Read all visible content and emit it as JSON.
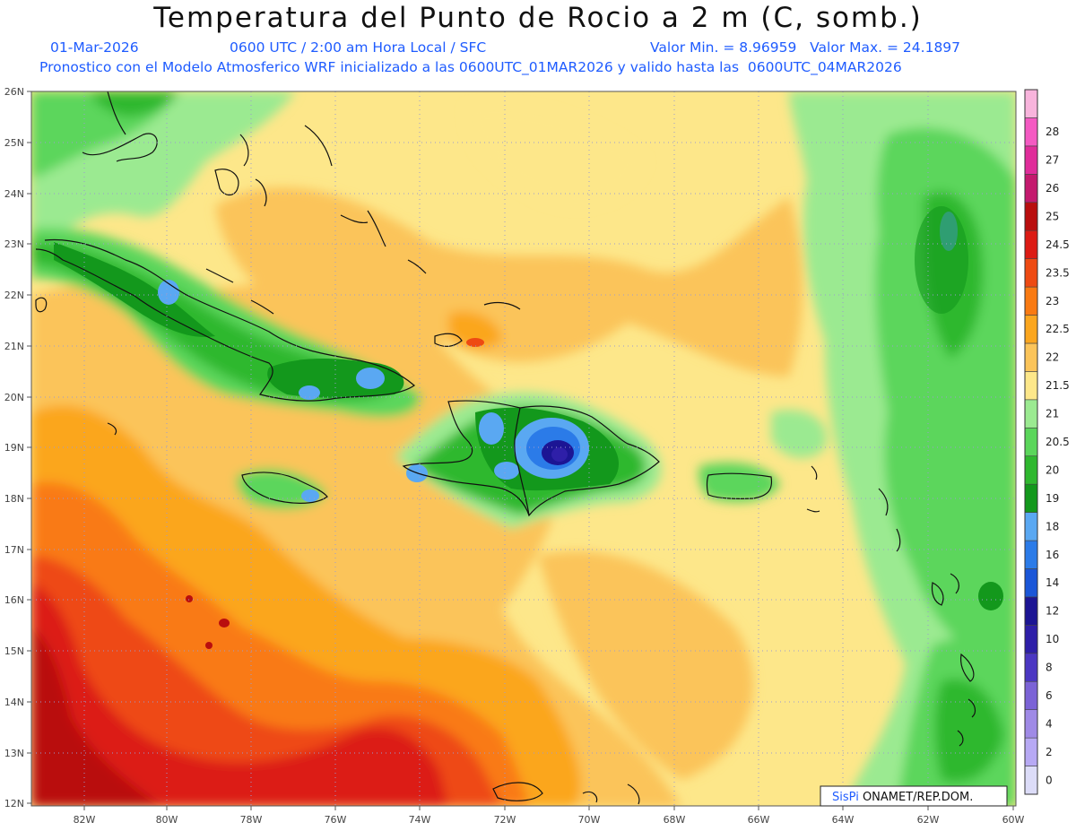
{
  "title": "Temperatura del Punto de Rocio a 2 m (C, somb.)",
  "header": {
    "date": "01-Mar-2026",
    "time": "0600 UTC / 2:00 am Hora Local / SFC",
    "minmax": "Valor Min. = 8.96959   Valor Max. = 24.1897",
    "forecast": "Pronostico con el Modelo Atmosferico WRF inicializado a las 0600UTC_01MAR2026 y valido hasta las  0600UTC_04MAR2026"
  },
  "axes": {
    "lat_labels": [
      "26N",
      "25N",
      "24N",
      "23N",
      "22N",
      "21N",
      "20N",
      "19N",
      "18N",
      "17N",
      "16N",
      "15N",
      "14N",
      "13N",
      "12N"
    ],
    "lon_labels": [
      "82W",
      "80W",
      "78W",
      "76W",
      "74W",
      "72W",
      "70W",
      "68W",
      "66W",
      "64W",
      "62W",
      "60W"
    ]
  },
  "legend": {
    "levels": [
      {
        "label": "0",
        "color": "#dcdcf8"
      },
      {
        "label": "2",
        "color": "#b7a9f4"
      },
      {
        "label": "4",
        "color": "#9f8ae6"
      },
      {
        "label": "6",
        "color": "#7b63d6"
      },
      {
        "label": "8",
        "color": "#4b37c2"
      },
      {
        "label": "10",
        "color": "#2e1fa8"
      },
      {
        "label": "12",
        "color": "#1c1594"
      },
      {
        "label": "14",
        "color": "#1a56d8"
      },
      {
        "label": "16",
        "color": "#2b7be8"
      },
      {
        "label": "18",
        "color": "#5aa8f2"
      },
      {
        "label": "19",
        "color": "#13981c"
      },
      {
        "label": "20",
        "color": "#2fb82f"
      },
      {
        "label": "20.5",
        "color": "#5bd65b"
      },
      {
        "label": "21",
        "color": "#9bea91"
      },
      {
        "label": "21.5",
        "color": "#fde78a"
      },
      {
        "label": "22",
        "color": "#fbc45a"
      },
      {
        "label": "22.5",
        "color": "#fba61f"
      },
      {
        "label": "23",
        "color": "#f97a12"
      },
      {
        "label": "23.5",
        "color": "#ee4a12"
      },
      {
        "label": "24.5",
        "color": "#dc1b14"
      },
      {
        "label": "25",
        "color": "#b90e0e"
      },
      {
        "label": "26",
        "color": "#c41a6e"
      },
      {
        "label": "27",
        "color": "#e02d9a"
      },
      {
        "label": "28",
        "color": "#f45ac2"
      },
      {
        "label": "",
        "color": "#f8b4dc"
      }
    ]
  },
  "credit": {
    "brand": "SisPi",
    "text": " ONAMET/REP.DOM."
  },
  "colors": {
    "header_text": "#1f5cff",
    "grid": "#9b9bd0"
  }
}
